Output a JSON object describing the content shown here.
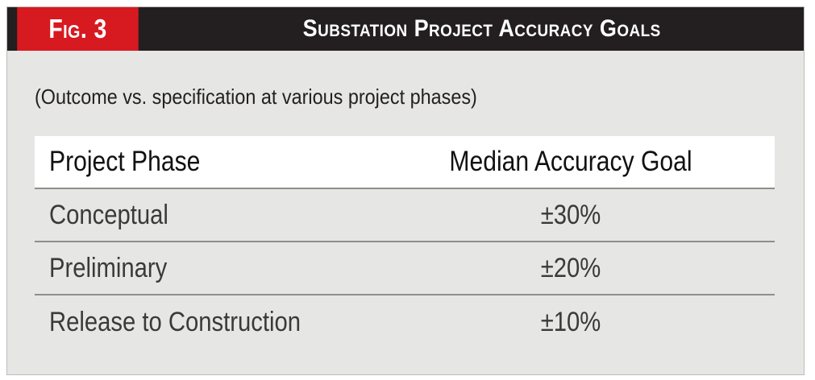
{
  "figure": {
    "label": "Fig. 3",
    "title": "Substation Project Accuracy Goals",
    "subtitle": "(Outcome vs. specification at various project phases)"
  },
  "table": {
    "headers": {
      "phase": "Project Phase",
      "goal": "Median Accuracy Goal"
    },
    "rows": [
      {
        "phase": "Conceptual",
        "goal": "±30%"
      },
      {
        "phase": "Preliminary",
        "goal": "±20%"
      },
      {
        "phase": "Release to Construction",
        "goal": "±10%"
      }
    ]
  },
  "colors": {
    "label_red": "#d71920",
    "header_black": "#231f20",
    "panel_gray": "#e6e6e4"
  }
}
